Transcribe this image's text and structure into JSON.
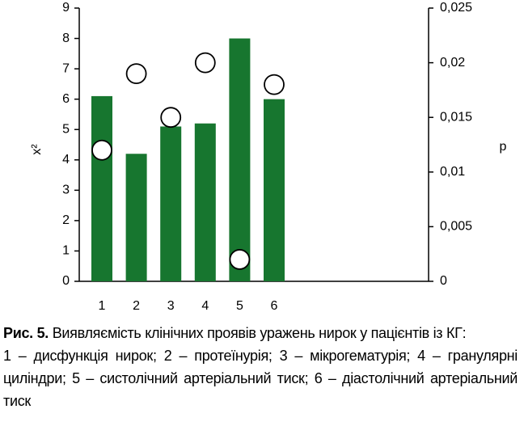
{
  "chart_data": {
    "type": "bar",
    "categories": [
      "1",
      "2",
      "3",
      "4",
      "5",
      "6"
    ],
    "series": [
      {
        "type": "bar",
        "color": "#17762f",
        "values": [
          6.1,
          4.2,
          5.1,
          5.2,
          8.0,
          6.0
        ]
      },
      {
        "type": "scatter",
        "axis": "y2",
        "color": "#ffffff",
        "values": [
          0.012,
          0.019,
          0.015,
          0.02,
          0.002,
          0.018
        ]
      }
    ],
    "ylabel": "x²",
    "y2label": "p",
    "ylim": [
      0,
      9
    ],
    "yticks": [
      0,
      1,
      2,
      3,
      4,
      5,
      6,
      7,
      8,
      9
    ],
    "y2lim": [
      0,
      0.025
    ],
    "y2ticks": [
      0,
      {
        "value": 0.005,
        "label": "0,005"
      },
      {
        "value": 0.01,
        "label": "0,01"
      },
      {
        "value": 0.015,
        "label": "0,015"
      },
      {
        "value": 0.02,
        "label": "0,02"
      },
      {
        "value": 0.025,
        "label": "0,025"
      }
    ],
    "grid": false,
    "caption_label": "Рис. 5.",
    "caption_title": "Виявляємість клінічних проявів уражень нирок у пацієнтів із КГ:",
    "caption_legend": "1 – дисфункція нирок; 2 – протеїнурія; 3 – мікрогематурія; 4 – гранулярні циліндри; 5 – систолічний артеріальний тиск; 6 – діастолічний артеріальний тиск"
  }
}
